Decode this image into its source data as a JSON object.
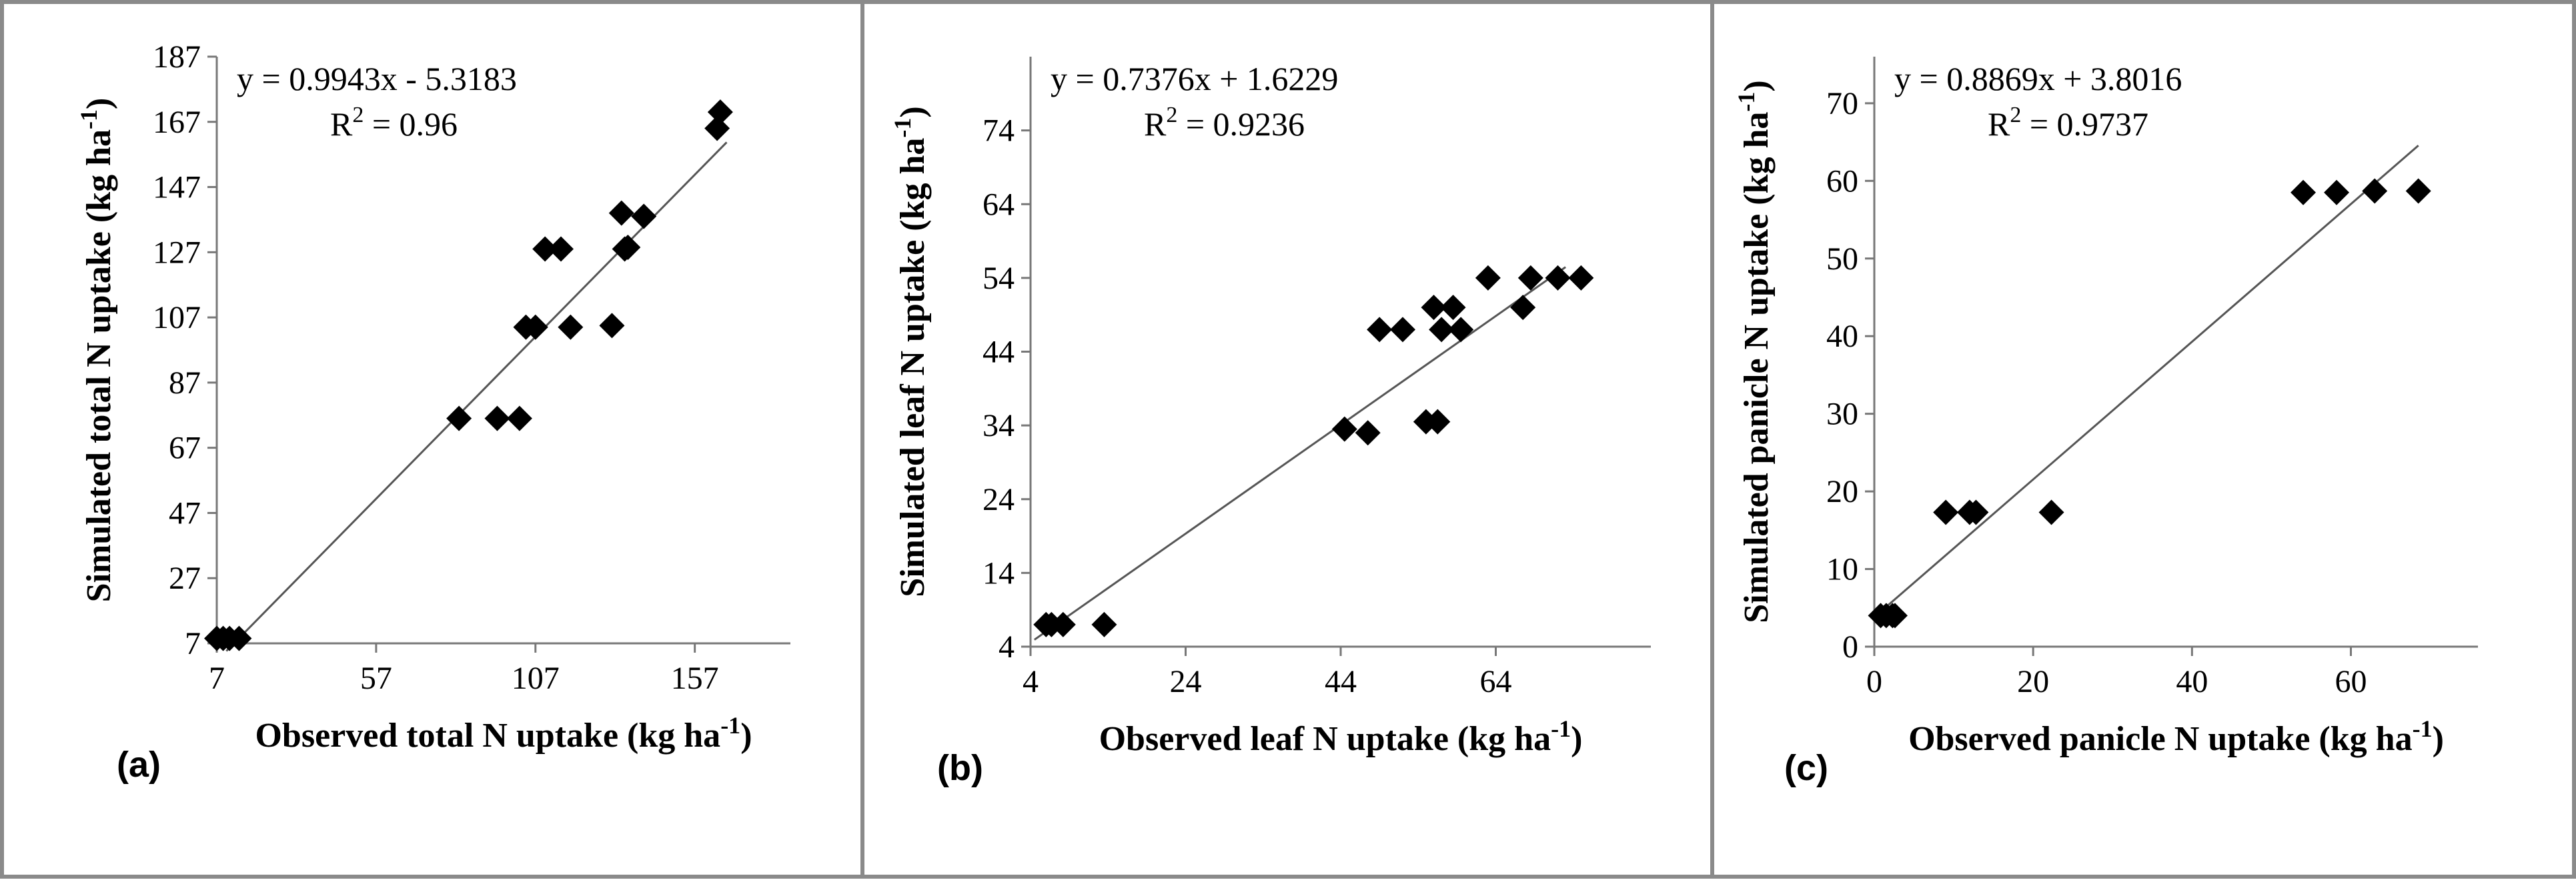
{
  "chart_data": [
    {
      "type": "scatter",
      "panel_label": "(a)",
      "xlabel": "Observed total N uptake (kg ha",
      "ylabel": "Simulated total N uptake (kg ha",
      "unit_superscript": "-1",
      "unit_close": ")",
      "xlim": [
        7,
        187
      ],
      "ylim": [
        7,
        187
      ],
      "xticks": [
        7,
        57,
        107,
        157
      ],
      "yticks": [
        7,
        27,
        47,
        67,
        87,
        107,
        127,
        147,
        167,
        187
      ],
      "equation": "y = 0.9943x - 5.3183",
      "r2_prefix": "R",
      "r2_sup": "2",
      "r2_value": " = 0.96",
      "fit": {
        "slope": 0.9943,
        "intercept": -5.3183,
        "x_range": [
          10,
          167
        ]
      },
      "points": [
        {
          "x": 7,
          "y": 8.5
        },
        {
          "x": 9,
          "y": 8.5
        },
        {
          "x": 11,
          "y": 8.5
        },
        {
          "x": 14,
          "y": 8.5
        },
        {
          "x": 83,
          "y": 76
        },
        {
          "x": 95,
          "y": 76
        },
        {
          "x": 102,
          "y": 76
        },
        {
          "x": 104,
          "y": 104
        },
        {
          "x": 107,
          "y": 104
        },
        {
          "x": 110,
          "y": 128
        },
        {
          "x": 115,
          "y": 128
        },
        {
          "x": 118,
          "y": 104
        },
        {
          "x": 131,
          "y": 104.5
        },
        {
          "x": 134,
          "y": 139
        },
        {
          "x": 135,
          "y": 128
        },
        {
          "x": 136,
          "y": 128.5
        },
        {
          "x": 141,
          "y": 138
        },
        {
          "x": 164,
          "y": 165
        },
        {
          "x": 165,
          "y": 170
        }
      ]
    },
    {
      "type": "scatter",
      "panel_label": "(b)",
      "xlabel": "Observed leaf N uptake (kg ha",
      "ylabel": "Simulated leaf N uptake (kg ha",
      "unit_superscript": "-1",
      "unit_close": ")",
      "xlim": [
        4,
        84
      ],
      "ylim": [
        4,
        84
      ],
      "xticks": [
        4,
        24,
        44,
        64
      ],
      "yticks": [
        4,
        14,
        24,
        34,
        44,
        54,
        64,
        74
      ],
      "equation": "y = 0.7376x + 1.6229",
      "r2_prefix": "R",
      "r2_sup": "2",
      "r2_value": " = 0.9236",
      "fit": {
        "slope": 0.7376,
        "intercept": 1.6229,
        "x_range": [
          4.5,
          73
        ]
      },
      "points": [
        {
          "x": 6,
          "y": 7
        },
        {
          "x": 6.7,
          "y": 7
        },
        {
          "x": 8.2,
          "y": 7
        },
        {
          "x": 13.5,
          "y": 7
        },
        {
          "x": 44.5,
          "y": 33.5
        },
        {
          "x": 47.5,
          "y": 33
        },
        {
          "x": 49,
          "y": 47
        },
        {
          "x": 52,
          "y": 47
        },
        {
          "x": 55,
          "y": 34.5
        },
        {
          "x": 56.5,
          "y": 34.5
        },
        {
          "x": 56,
          "y": 50
        },
        {
          "x": 57,
          "y": 47
        },
        {
          "x": 58.5,
          "y": 50
        },
        {
          "x": 59.5,
          "y": 47
        },
        {
          "x": 63,
          "y": 54
        },
        {
          "x": 67.5,
          "y": 50
        },
        {
          "x": 68.5,
          "y": 54
        },
        {
          "x": 72,
          "y": 54
        },
        {
          "x": 75,
          "y": 54
        }
      ]
    },
    {
      "type": "scatter",
      "panel_label": "(c)",
      "xlabel": "Observed panicle N uptake (kg ha",
      "ylabel": "Simulated panicle N uptake (kg ha",
      "unit_superscript": "-1",
      "unit_close": ")",
      "xlim": [
        0,
        76
      ],
      "ylim": [
        0,
        76
      ],
      "xticks": [
        0,
        20,
        40,
        60
      ],
      "yticks": [
        0,
        10,
        20,
        30,
        40,
        50,
        60,
        70
      ],
      "equation": "y = 0.8869x + 3.8016",
      "r2_prefix": "R",
      "r2_sup": "2",
      "r2_value": " = 0.9737",
      "fit": {
        "slope": 0.8869,
        "intercept": 3.8016,
        "x_range": [
          0.5,
          68.5
        ]
      },
      "points": [
        {
          "x": 0.8,
          "y": 4
        },
        {
          "x": 1.5,
          "y": 4
        },
        {
          "x": 2.3,
          "y": 4
        },
        {
          "x": 2.6,
          "y": 4
        },
        {
          "x": 9,
          "y": 17.3
        },
        {
          "x": 12,
          "y": 17.3
        },
        {
          "x": 12.8,
          "y": 17.3
        },
        {
          "x": 22.3,
          "y": 17.3
        },
        {
          "x": 54,
          "y": 58.5
        },
        {
          "x": 58.2,
          "y": 58.5
        },
        {
          "x": 63,
          "y": 58.7
        },
        {
          "x": 68.5,
          "y": 58.7
        }
      ]
    }
  ]
}
